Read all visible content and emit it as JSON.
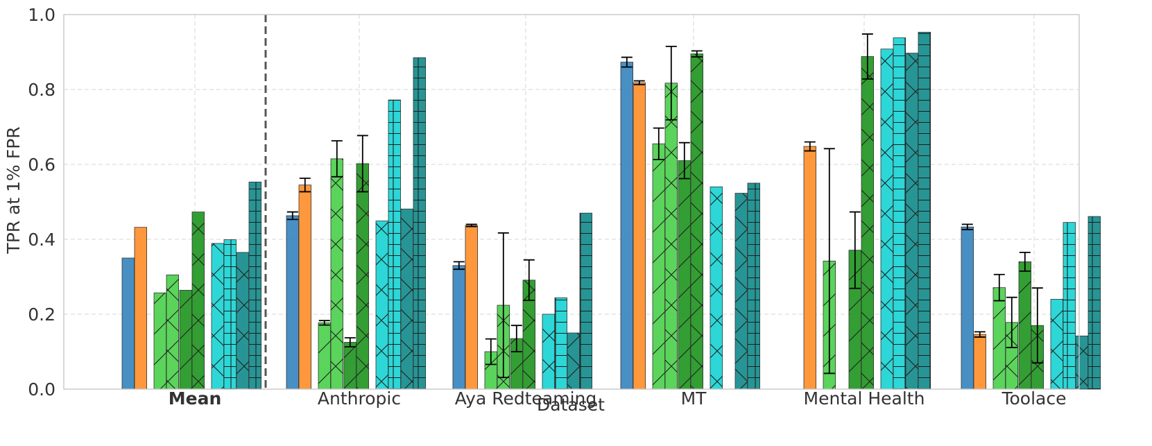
{
  "chart_data": {
    "type": "bar",
    "xlabel": "Dataset",
    "ylabel": "TPR at 1% FPR",
    "ylim": [
      0,
      1.0
    ],
    "yticks": [
      "0.0",
      "0.2",
      "0.4",
      "0.6",
      "0.8",
      "1.0"
    ],
    "grid": true,
    "categories": [
      "Mean",
      "Anthropic",
      "Aya Redteaming",
      "MT",
      "Mental Health",
      "Toolace"
    ],
    "bold_categories": [
      "Mean"
    ],
    "separator_after_category": "Mean",
    "series": [
      {
        "color": "#3a86bf",
        "hatch": "none",
        "values": [
          0.35,
          0.463,
          0.33,
          0.873,
          null,
          0.433
        ],
        "errors": [
          0,
          0.01,
          0.01,
          0.013,
          0,
          0.007
        ]
      },
      {
        "color": "#ff902e",
        "hatch": "none",
        "values": [
          0.432,
          0.545,
          0.437,
          0.818,
          0.648,
          0.146
        ],
        "errors": [
          0,
          0.018,
          0.003,
          0.005,
          0.012,
          0.007
        ]
      },
      {
        "color": "#4fd14f",
        "hatch": "slash",
        "values": [
          0.257,
          0.177,
          0.1,
          0.655,
          0.342,
          0.271
        ],
        "errors": [
          0,
          0.006,
          0.034,
          0.042,
          0.3,
          0.035
        ]
      },
      {
        "color": "#4fd14f",
        "hatch": "cross",
        "values": [
          0.305,
          0.615,
          0.224,
          0.817,
          null,
          0.178
        ],
        "errors": [
          0,
          0.048,
          0.193,
          0.098,
          0,
          0.067
        ]
      },
      {
        "color": "#239723",
        "hatch": "slash",
        "values": [
          0.264,
          0.125,
          0.135,
          0.61,
          0.371,
          0.34
        ],
        "errors": [
          0,
          0.012,
          0.035,
          0.048,
          0.102,
          0.025
        ]
      },
      {
        "color": "#239723",
        "hatch": "cross",
        "values": [
          0.473,
          0.602,
          0.291,
          0.895,
          0.888,
          0.17
        ],
        "errors": [
          0,
          0.075,
          0.054,
          0.008,
          0.06,
          0.1
        ]
      },
      {
        "color": "#1dd4d4",
        "hatch": "cross",
        "values": [
          0.389,
          0.449,
          0.2,
          0.54,
          0.908,
          0.24
        ],
        "errors": [
          0,
          0,
          0,
          0,
          0,
          0
        ]
      },
      {
        "color": "#1dd4d4",
        "hatch": "grid",
        "values": [
          0.399,
          0.772,
          0.244,
          null,
          0.938,
          0.445
        ],
        "errors": [
          0,
          0,
          0,
          0,
          0,
          0
        ]
      },
      {
        "color": "#178d8d",
        "hatch": "cross",
        "values": [
          0.365,
          0.481,
          0.15,
          0.523,
          0.897,
          0.142
        ],
        "errors": [
          0,
          0,
          0,
          0,
          0,
          0
        ]
      },
      {
        "color": "#178d8d",
        "hatch": "grid",
        "values": [
          0.553,
          0.885,
          0.47,
          0.55,
          0.953,
          0.461
        ],
        "errors": [
          0,
          0,
          0,
          0,
          0,
          0
        ]
      }
    ]
  }
}
